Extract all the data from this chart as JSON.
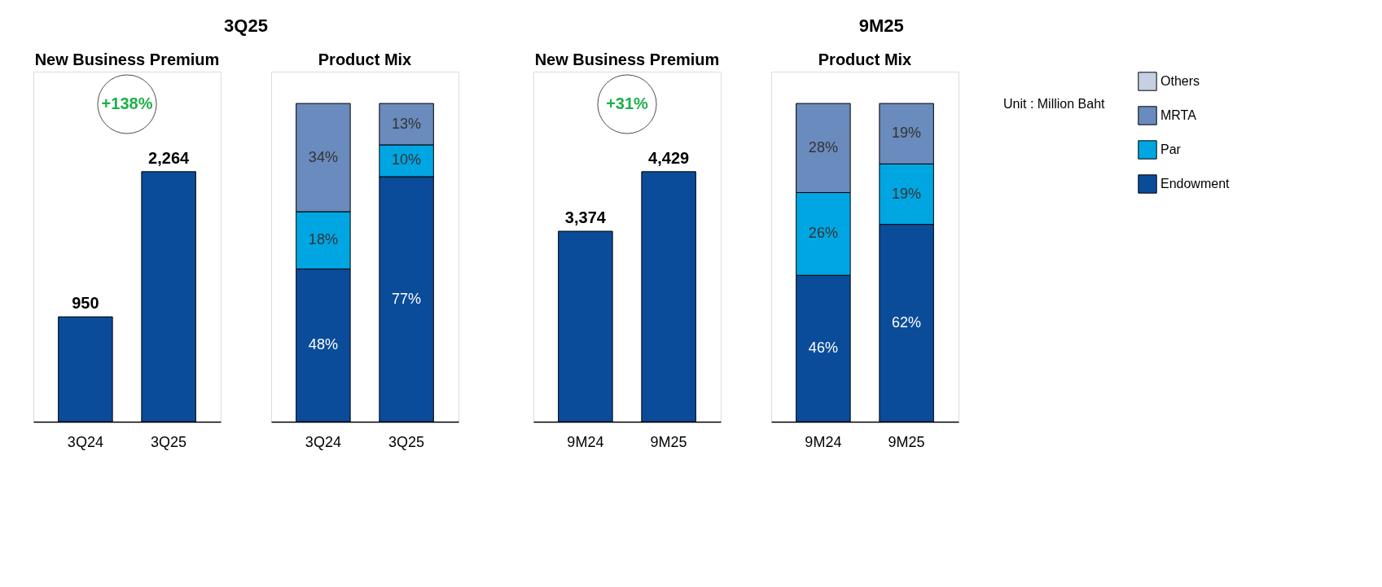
{
  "chart_data": [
    {
      "type": "bar",
      "title": "New Business Premium",
      "categories": [
        "3Q24",
        "3Q25"
      ],
      "values": [
        950,
        2264
      ],
      "value_labels": [
        "950",
        "2,264"
      ],
      "color": "#0a4c9a",
      "annotations": [
        "3Q25",
        "+138%"
      ]
    },
    {
      "type": "bar",
      "title": "Product Mix",
      "categories": [
        "3Q24",
        "3Q25"
      ],
      "stacked": true,
      "series": [
        {
          "color": "#0a4c9a",
          "values": [
            48,
            77
          ],
          "value_labels": [
            "48%",
            "77%"
          ]
        },
        {
          "color": "#00a6e2",
          "values": [
            18,
            10
          ],
          "value_labels": [
            "18%",
            "10%"
          ]
        },
        {
          "color": "#6a8bbd",
          "values": [
            34,
            13
          ],
          "value_labels": [
            "34%",
            "13%"
          ]
        },
        {
          "color": "#c5d0e2",
          "values": [
            null,
            null
          ]
        }
      ]
    },
    {
      "type": "bar",
      "title": "New Business Premium",
      "categories": [
        "9M24",
        "9M25"
      ],
      "values": [
        3374,
        4429
      ],
      "value_labels": [
        "3,374",
        "4,429"
      ],
      "color": "#0a4c9a",
      "annotations": [
        "9M25",
        "+31%"
      ]
    },
    {
      "type": "bar",
      "title": "Product Mix",
      "categories": [
        "9M24",
        "9M25"
      ],
      "stacked": true,
      "legend": "right",
      "annotations": [
        "Unit : Million Baht"
      ],
      "series": [
        {
          "name": "Endowment",
          "color": "#0a4c9a",
          "values": [
            46,
            62
          ],
          "value_labels": [
            "46%",
            "62%"
          ]
        },
        {
          "name": "Par",
          "color": "#00a6e2",
          "values": [
            26,
            19
          ],
          "value_labels": [
            "26%",
            "19%"
          ]
        },
        {
          "name": "MRTA",
          "color": "#6a8bbd",
          "values": [
            28,
            19
          ],
          "value_labels": [
            "28%",
            "19%"
          ]
        },
        {
          "name": "Others",
          "color": "#c5d0e2",
          "values": [
            null,
            null
          ]
        }
      ]
    }
  ]
}
